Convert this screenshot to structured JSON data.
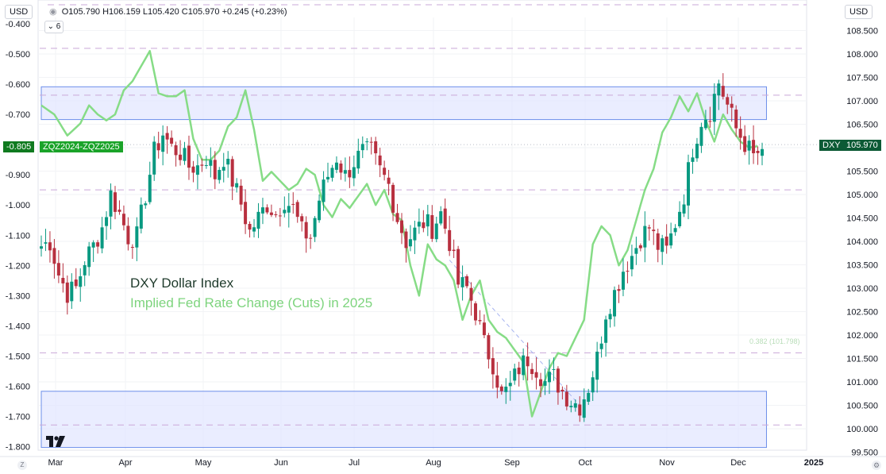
{
  "header": {
    "currency_left": "USD",
    "currency_right": "USD",
    "ohlc_text": "O105.790 H106.159 L105.420 C105.970 +0.245 (+0.23%)",
    "interval_badge": "6"
  },
  "annotations": {
    "series1": "DXY Dollar Index",
    "series2": "Implied Fed Rate Change (Cuts) in 2025",
    "fib_label": "0.382 (101.798)"
  },
  "tags": {
    "left_value": "-0.805",
    "left_name": "ZQZ2024-ZQZ2025",
    "right_name": "DXY",
    "right_value": "105.970"
  },
  "colors": {
    "up": "#089981",
    "down": "#b8303f",
    "implied": "#86dc86",
    "box_fill": "#dfe4ff",
    "box_stroke": "#6c8eea",
    "hline": "#c9a8d8"
  },
  "chart_data": {
    "type": "candlestick+line",
    "x_labels": [
      "Mar",
      "Apr",
      "May",
      "Jun",
      "Jul",
      "Aug",
      "Sep",
      "Oct",
      "Nov",
      "Dec",
      "2025"
    ],
    "left_axis": {
      "min": -1.8,
      "max": -0.4,
      "ticks": [
        "-0.400",
        "-0.500",
        "-0.600",
        "-0.700",
        "-0.800",
        "-0.900",
        "-1.000",
        "-1.100",
        "-1.200",
        "-1.300",
        "-1.400",
        "-1.500",
        "-1.600",
        "-1.700",
        "-1.800"
      ]
    },
    "right_axis": {
      "min": 99.5,
      "max": 108.5,
      "ticks": [
        "108.500",
        "108.000",
        "107.500",
        "107.000",
        "106.500",
        "106.000",
        "105.500",
        "105.000",
        "104.500",
        "104.000",
        "103.500",
        "103.000",
        "102.500",
        "102.000",
        "101.500",
        "101.000",
        "100.500",
        "100.000",
        "99.500"
      ]
    },
    "dxy_anchors": [
      [
        0,
        103.9
      ],
      [
        2,
        104.0
      ],
      [
        4,
        103.3
      ],
      [
        6,
        102.9
      ],
      [
        8,
        103.0
      ],
      [
        10,
        103.6
      ],
      [
        12,
        103.9
      ],
      [
        14,
        104.3
      ],
      [
        16,
        105.0
      ],
      [
        18,
        104.6
      ],
      [
        20,
        104.1
      ],
      [
        22,
        104.1
      ],
      [
        24,
        105.0
      ],
      [
        26,
        105.9
      ],
      [
        28,
        106.3
      ],
      [
        30,
        106.0
      ],
      [
        32,
        105.9
      ],
      [
        34,
        105.6
      ],
      [
        36,
        105.6
      ],
      [
        38,
        105.8
      ],
      [
        40,
        105.4
      ],
      [
        42,
        105.8
      ],
      [
        44,
        105.3
      ],
      [
        46,
        104.8
      ],
      [
        48,
        104.2
      ],
      [
        50,
        104.5
      ],
      [
        52,
        104.8
      ],
      [
        54,
        104.6
      ],
      [
        56,
        104.9
      ],
      [
        58,
        104.7
      ],
      [
        60,
        104.2
      ],
      [
        62,
        104.1
      ],
      [
        64,
        104.9
      ],
      [
        66,
        105.4
      ],
      [
        68,
        105.8
      ],
      [
        70,
        105.4
      ],
      [
        72,
        105.7
      ],
      [
        74,
        105.9
      ],
      [
        76,
        105.9
      ],
      [
        78,
        105.5
      ],
      [
        80,
        105.2
      ],
      [
        82,
        104.5
      ],
      [
        84,
        104.0
      ],
      [
        86,
        104.2
      ],
      [
        88,
        104.4
      ],
      [
        90,
        104.3
      ],
      [
        92,
        104.6
      ],
      [
        94,
        104.0
      ],
      [
        96,
        103.1
      ],
      [
        98,
        103.0
      ],
      [
        100,
        102.5
      ],
      [
        102,
        101.8
      ],
      [
        104,
        101.4
      ],
      [
        106,
        100.7
      ],
      [
        108,
        100.9
      ],
      [
        110,
        101.3
      ],
      [
        112,
        101.5
      ],
      [
        114,
        101.3
      ],
      [
        116,
        101.0
      ],
      [
        118,
        101.1
      ],
      [
        120,
        100.8
      ],
      [
        122,
        100.6
      ],
      [
        124,
        100.5
      ],
      [
        126,
        100.9
      ],
      [
        128,
        101.5
      ],
      [
        130,
        102.5
      ],
      [
        132,
        102.9
      ],
      [
        134,
        103.4
      ],
      [
        136,
        103.7
      ],
      [
        138,
        104.1
      ],
      [
        140,
        104.3
      ],
      [
        142,
        103.9
      ],
      [
        144,
        103.8
      ],
      [
        146,
        104.4
      ],
      [
        148,
        105.0
      ],
      [
        150,
        106.0
      ],
      [
        152,
        106.6
      ],
      [
        154,
        106.8
      ],
      [
        156,
        107.4
      ],
      [
        158,
        106.9
      ],
      [
        160,
        106.4
      ],
      [
        162,
        106.1
      ],
      [
        164,
        105.8
      ],
      [
        166,
        105.97
      ]
    ],
    "implied_anchors": [
      [
        0,
        -0.67
      ],
      [
        3,
        -0.7
      ],
      [
        6,
        -0.77
      ],
      [
        9,
        -0.73
      ],
      [
        11,
        -0.67
      ],
      [
        13,
        -0.7
      ],
      [
        15,
        -0.72
      ],
      [
        17,
        -0.7
      ],
      [
        19,
        -0.62
      ],
      [
        21,
        -0.59
      ],
      [
        23,
        -0.54
      ],
      [
        25,
        -0.49
      ],
      [
        27,
        -0.63
      ],
      [
        29,
        -0.64
      ],
      [
        31,
        -0.64
      ],
      [
        33,
        -0.62
      ],
      [
        35,
        -0.78
      ],
      [
        37,
        -0.85
      ],
      [
        39,
        -0.85
      ],
      [
        41,
        -0.82
      ],
      [
        43,
        -0.74
      ],
      [
        45,
        -0.71
      ],
      [
        47,
        -0.62
      ],
      [
        49,
        -0.75
      ],
      [
        51,
        -0.92
      ],
      [
        53,
        -0.89
      ],
      [
        55,
        -0.92
      ],
      [
        57,
        -0.95
      ],
      [
        59,
        -0.93
      ],
      [
        61,
        -0.88
      ],
      [
        63,
        -0.9
      ],
      [
        65,
        -1.0
      ],
      [
        67,
        -1.04
      ],
      [
        69,
        -0.98
      ],
      [
        71,
        -1.01
      ],
      [
        73,
        -0.97
      ],
      [
        75,
        -0.93
      ],
      [
        77,
        -1.0
      ],
      [
        79,
        -0.95
      ],
      [
        81,
        -1.03
      ],
      [
        83,
        -1.05
      ],
      [
        85,
        -1.2
      ],
      [
        87,
        -1.3
      ],
      [
        89,
        -1.13
      ],
      [
        91,
        -1.18
      ],
      [
        93,
        -1.2
      ],
      [
        95,
        -1.25
      ],
      [
        97,
        -1.38
      ],
      [
        99,
        -1.3
      ],
      [
        101,
        -1.25
      ],
      [
        103,
        -1.38
      ],
      [
        105,
        -1.42
      ],
      [
        107,
        -1.44
      ],
      [
        109,
        -1.48
      ],
      [
        111,
        -1.52
      ],
      [
        113,
        -1.7
      ],
      [
        115,
        -1.62
      ],
      [
        117,
        -1.54
      ],
      [
        119,
        -1.49
      ],
      [
        121,
        -1.5
      ],
      [
        123,
        -1.44
      ],
      [
        125,
        -1.38
      ],
      [
        127,
        -1.13
      ],
      [
        129,
        -1.07
      ],
      [
        131,
        -1.1
      ],
      [
        133,
        -1.2
      ],
      [
        135,
        -1.15
      ],
      [
        137,
        -1.05
      ],
      [
        139,
        -0.95
      ],
      [
        141,
        -0.88
      ],
      [
        143,
        -0.76
      ],
      [
        145,
        -0.71
      ],
      [
        147,
        -0.64
      ],
      [
        149,
        -0.69
      ],
      [
        151,
        -0.63
      ],
      [
        153,
        -0.72
      ],
      [
        155,
        -0.79
      ],
      [
        157,
        -0.7
      ],
      [
        159,
        -0.75
      ],
      [
        161,
        -0.79
      ],
      [
        163,
        -0.81
      ],
      [
        165,
        -0.805
      ]
    ],
    "boxes": [
      {
        "y_top": 107.3,
        "y_bottom": 106.6,
        "x_from": 0,
        "x_to": 167
      },
      {
        "y_top": 100.8,
        "y_bottom": 99.6,
        "x_from": 0,
        "x_to": 167
      }
    ],
    "hlines": [
      108.12,
      107.12,
      105.1,
      101.62,
      100.08
    ],
    "trendline": [
      [
        94,
        103.6
      ],
      [
        124,
        100.5
      ]
    ],
    "grid": true,
    "legend": "none"
  }
}
